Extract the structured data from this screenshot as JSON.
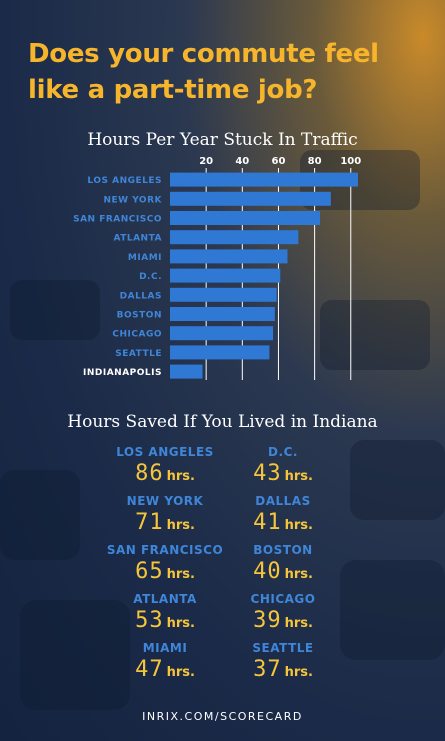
{
  "headline": "Does your commute feel like a part-time job?",
  "chart_data": {
    "type": "bar",
    "orientation": "horizontal",
    "title": "Hours Per Year Stuck In Traffic",
    "categories": [
      "LOS ANGELES",
      "NEW YORK",
      "SAN FRANCISCO",
      "ATLANTA",
      "MIAMI",
      "D.C.",
      "DALLAS",
      "BOSTON",
      "CHICAGO",
      "SEATTLE",
      "INDIANAPOLIS"
    ],
    "values": [
      104,
      89,
      83,
      71,
      65,
      61,
      59,
      58,
      57,
      55,
      18
    ],
    "xticks": [
      20,
      40,
      60,
      80,
      100
    ],
    "xlim": [
      0,
      104
    ],
    "grid": true,
    "colors": {
      "bar": "#2f78d4",
      "label": "#3f86d8",
      "highlight_label": "#ffffff",
      "grid": "#ffffff",
      "tick": "#ffffff"
    }
  },
  "saved": {
    "title": "Hours Saved If You Lived in Indiana",
    "unit": "hrs.",
    "items": [
      {
        "city": "LOS ANGELES",
        "hours": "86"
      },
      {
        "city": "D.C.",
        "hours": "43"
      },
      {
        "city": "NEW YORK",
        "hours": "71"
      },
      {
        "city": "DALLAS",
        "hours": "41"
      },
      {
        "city": "SAN FRANCISCO",
        "hours": "65"
      },
      {
        "city": "BOSTON",
        "hours": "40"
      },
      {
        "city": "ATLANTA",
        "hours": "53"
      },
      {
        "city": "CHICAGO",
        "hours": "39"
      },
      {
        "city": "MIAMI",
        "hours": "47"
      },
      {
        "city": "SEATTLE",
        "hours": "37"
      }
    ]
  },
  "footer": "INRIX.COM/SCORECARD"
}
